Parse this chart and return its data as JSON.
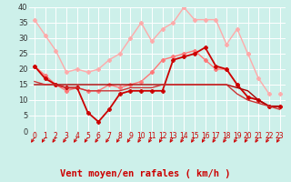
{
  "title": "",
  "xlabel": "Vent moyen/en rafales ( km/h )",
  "ylabel": "",
  "xlim": [
    -0.5,
    23.5
  ],
  "ylim": [
    0,
    40
  ],
  "yticks": [
    0,
    5,
    10,
    15,
    20,
    25,
    30,
    35,
    40
  ],
  "xticks": [
    0,
    1,
    2,
    3,
    4,
    5,
    6,
    7,
    8,
    9,
    10,
    11,
    12,
    13,
    14,
    15,
    16,
    17,
    18,
    19,
    20,
    21,
    22,
    23
  ],
  "xticklabels": [
    "0",
    "1",
    "2",
    "3",
    "4",
    "5",
    "6",
    "7",
    "8",
    "9",
    "10",
    "11",
    "12",
    "13",
    "14",
    "15",
    "16",
    "17",
    "18",
    "19",
    "20",
    "21",
    "22",
    "23"
  ],
  "background_color": "#cdf0ea",
  "grid_color": "#ffffff",
  "series": [
    {
      "color": "#ffaaaa",
      "lw": 1.0,
      "marker": "P",
      "ms": 3,
      "values": [
        36,
        31,
        26,
        19,
        20,
        19,
        20,
        23,
        25,
        30,
        35,
        29,
        33,
        35,
        40,
        36,
        36,
        36,
        28,
        33,
        25,
        17,
        12,
        null
      ]
    },
    {
      "color": "#ffaaaa",
      "lw": 1.0,
      "marker": "P",
      "ms": 3,
      "values": [
        null,
        null,
        null,
        null,
        null,
        null,
        null,
        null,
        null,
        null,
        null,
        null,
        null,
        null,
        null,
        null,
        null,
        null,
        null,
        null,
        25,
        null,
        null,
        12
      ]
    },
    {
      "color": "#ff7777",
      "lw": 1.0,
      "marker": "P",
      "ms": 3,
      "values": [
        21,
        18,
        15,
        13,
        14,
        13,
        13,
        15,
        14,
        15,
        16,
        19,
        23,
        24,
        25,
        26,
        23,
        20,
        20,
        15,
        11,
        10,
        8,
        8
      ]
    },
    {
      "color": "#cc0000",
      "lw": 1.3,
      "marker": "P",
      "ms": 3,
      "values": [
        21,
        17,
        15,
        14,
        14,
        6,
        3,
        7,
        12,
        13,
        13,
        13,
        13,
        23,
        24,
        25,
        27,
        21,
        20,
        15,
        11,
        10,
        8,
        8
      ]
    },
    {
      "color": "#aa0000",
      "lw": 1.0,
      "marker": null,
      "ms": 0,
      "values": [
        15,
        15,
        15,
        15,
        15,
        15,
        15,
        15,
        15,
        15,
        15,
        15,
        15,
        15,
        15,
        15,
        15,
        15,
        15,
        14,
        13,
        10,
        8,
        8
      ]
    },
    {
      "color": "#cc3333",
      "lw": 1.0,
      "marker": null,
      "ms": 0,
      "values": [
        16,
        15,
        15,
        14,
        14,
        13,
        13,
        13,
        13,
        14,
        14,
        14,
        15,
        15,
        15,
        15,
        15,
        15,
        15,
        12,
        10,
        9,
        8,
        7
      ]
    }
  ],
  "arrow_color": "#cc0000",
  "xlabel_color": "#cc0000",
  "xlabel_fontsize": 7.5
}
